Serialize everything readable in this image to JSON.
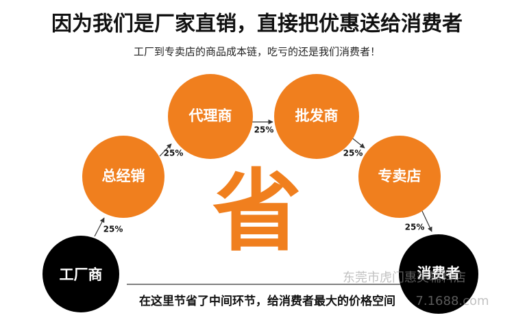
{
  "header": {
    "title": "因为我们是厂家直销，直接把优惠送给消费者",
    "subtitle": "工厂到专卖店的商品成本链，吃亏的还是我们消费者！"
  },
  "nodes": [
    {
      "label": "工厂商"
    },
    {
      "label": "总经销"
    },
    {
      "label": "代理商"
    },
    {
      "label": "批发商"
    },
    {
      "label": "专卖店"
    },
    {
      "label": "消费者"
    }
  ],
  "edges": [
    {
      "label": "25%"
    },
    {
      "label": "25%"
    },
    {
      "label": "25%"
    },
    {
      "label": "25%"
    },
    {
      "label": "25%"
    }
  ],
  "center_text": "省",
  "footer": {
    "text": "在这里节省了中间环节，给消费者最大的价格空间"
  },
  "watermark": {
    "shop": "东莞市虎门惠美辅料店",
    "site": "7.1688.com"
  }
}
